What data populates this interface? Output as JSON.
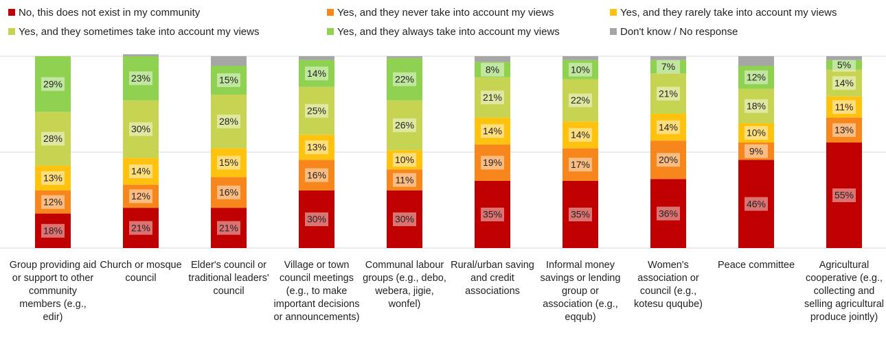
{
  "chart_data": {
    "type": "bar",
    "stacked": true,
    "categories": [
      "Group providing aid or support to other community members (e.g., edir)",
      "Church or mosque council",
      "Elder's council or traditional leaders' council",
      "Village or town council meetings (e.g., to make important decisions or announcements)",
      "Communal labour groups (e.g., debo, webera, jigie, wonfel)",
      "Rural/urban saving and credit associations",
      "Informal money savings or lending group or association (e.g., eqqub)",
      "Women's association or council (e.g., kotesu quqube)",
      "Peace committee",
      "Agricultural cooperative (e.g., collecting and selling agricultural produce jointly)"
    ],
    "series": [
      {
        "name": "No, this does not exist in my community",
        "color": "#c00000",
        "values": [
          18,
          21,
          21,
          30,
          30,
          35,
          35,
          36,
          46,
          55
        ],
        "value_labels": [
          "18%",
          "21%",
          "21%",
          "30%",
          "30%",
          "35%",
          "35%",
          "36%",
          "46%",
          "55%"
        ]
      },
      {
        "name": "Yes, and they never take into account my views",
        "color": "#f7861c",
        "values": [
          12,
          12,
          16,
          16,
          11,
          19,
          17,
          20,
          9,
          13
        ],
        "value_labels": [
          "12%",
          "12%",
          "16%",
          "16%",
          "11%",
          "19%",
          "17%",
          "20%",
          "9%",
          "13%"
        ]
      },
      {
        "name": "Yes, and they rarely take into account my views",
        "color": "#fec20f",
        "values": [
          13,
          14,
          15,
          13,
          10,
          14,
          14,
          14,
          10,
          11
        ],
        "value_labels": [
          "13%",
          "14%",
          "15%",
          "13%",
          "10%",
          "14%",
          "14%",
          "14%",
          "10%",
          "11%"
        ]
      },
      {
        "name": "Yes, and they sometimes take into account my views",
        "color": "#c6d452",
        "values": [
          28,
          30,
          28,
          25,
          26,
          21,
          22,
          21,
          18,
          14
        ],
        "value_labels": [
          "28%",
          "30%",
          "28%",
          "25%",
          "26%",
          "21%",
          "22%",
          "21%",
          "18%",
          "14%"
        ]
      },
      {
        "name": "Yes, and they always take into account my views",
        "color": "#8fd150",
        "values": [
          29,
          23,
          15,
          14,
          22,
          8,
          10,
          7,
          12,
          5
        ],
        "value_labels": [
          "29%",
          "23%",
          "15%",
          "14%",
          "22%",
          "8%",
          "10%",
          "7%",
          "12%",
          "5%"
        ]
      },
      {
        "name": "Don't know / No response",
        "color": "#a6a6a6",
        "values": [
          0,
          1,
          5,
          2,
          1,
          3,
          2,
          2,
          5,
          2
        ]
      }
    ],
    "ylim": [
      0,
      100
    ],
    "yticks": [
      0,
      50,
      100
    ],
    "grid": true
  }
}
